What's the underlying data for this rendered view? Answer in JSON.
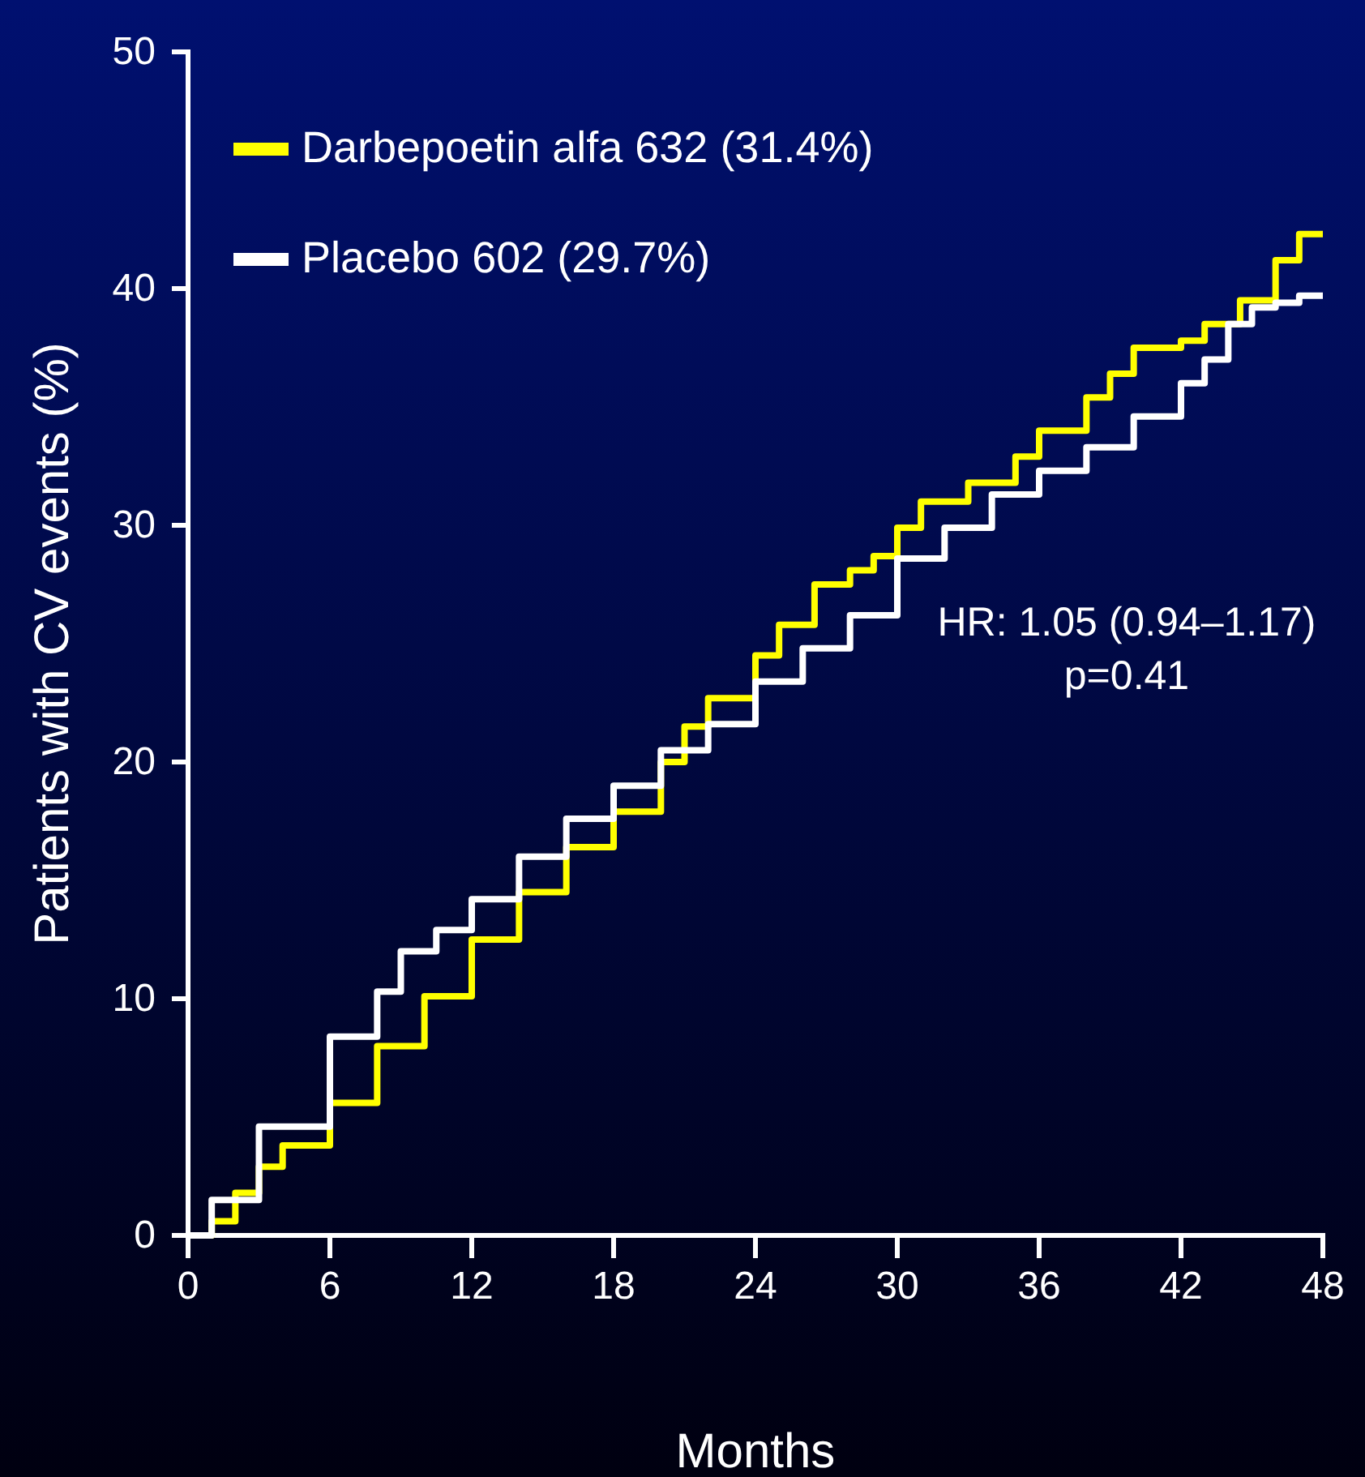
{
  "chart_data": {
    "type": "step",
    "xlabel": "Months",
    "ylabel": "Patients with CV events (%)",
    "xlim": [
      0,
      48
    ],
    "xticks": [
      0,
      6,
      12,
      18,
      24,
      30,
      36,
      42,
      48
    ],
    "ylim": [
      0,
      50
    ],
    "yticks": [
      0,
      10,
      20,
      30,
      40,
      50
    ],
    "grid": false,
    "legend": "top left",
    "line_style": "solid",
    "marker": "none",
    "annotations": [
      "HR: 1.05 (0.94–1.17)",
      "p=0.41"
    ],
    "series": [
      {
        "name": "Darbepoetin alfa 632 (31.4%)",
        "color": "#ffff00",
        "x": [
          0,
          1,
          2,
          3,
          4,
          6,
          8,
          10,
          12,
          14,
          16,
          18,
          20,
          21,
          22,
          24,
          25,
          26.5,
          28,
          29,
          30,
          31,
          33,
          35,
          36,
          38,
          39,
          40,
          42,
          43,
          44.5,
          46,
          47,
          48
        ],
        "values": [
          0,
          0.6,
          1.8,
          2.9,
          3.8,
          5.6,
          8.0,
          10.1,
          12.5,
          14.5,
          16.4,
          17.9,
          20.0,
          21.5,
          22.7,
          24.5,
          25.8,
          27.5,
          28.1,
          28.7,
          29.9,
          31.0,
          31.8,
          32.9,
          34.0,
          35.4,
          36.4,
          37.5,
          37.8,
          38.5,
          39.5,
          41.2,
          42.3,
          42.3
        ]
      },
      {
        "name": "Placebo 602 (29.7%)",
        "color": "#ffffff",
        "x": [
          0,
          1,
          3,
          6,
          8,
          9,
          10.5,
          12,
          14,
          16,
          18,
          20,
          22,
          24,
          26,
          28,
          30,
          32,
          34,
          36,
          38,
          40,
          42,
          43,
          44,
          45,
          46,
          47,
          48
        ],
        "values": [
          0,
          1.5,
          4.6,
          8.4,
          10.3,
          12.0,
          12.9,
          14.2,
          16.0,
          17.6,
          19.0,
          20.5,
          21.6,
          23.4,
          24.8,
          26.2,
          28.6,
          29.9,
          31.3,
          32.3,
          33.3,
          34.6,
          36.0,
          37.0,
          38.5,
          39.2,
          39.4,
          39.7,
          39.7
        ]
      }
    ]
  }
}
